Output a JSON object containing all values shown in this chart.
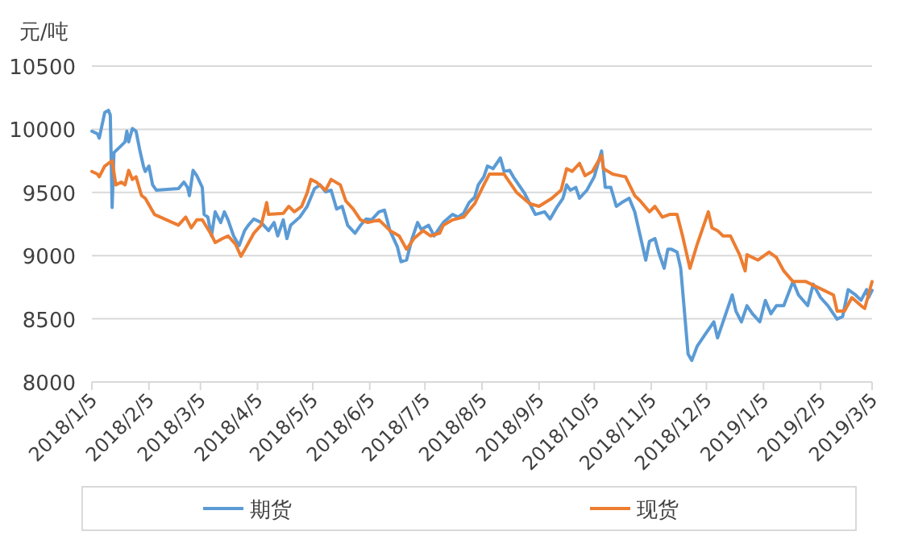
{
  "chart_data": {
    "type": "line",
    "ylabel": "元/吨",
    "ylim": [
      8000,
      10500
    ],
    "yticks": [
      8000,
      8500,
      9000,
      9500,
      10000,
      10500
    ],
    "xlim": [
      "2018-01-05",
      "2019-03-05"
    ],
    "xticks": [
      {
        "value": "2018-01-05",
        "label": "2018/1/5"
      },
      {
        "value": "2018-02-05",
        "label": "2018/2/5"
      },
      {
        "value": "2018-03-05",
        "label": "2018/3/5"
      },
      {
        "value": "2018-04-05",
        "label": "2018/4/5"
      },
      {
        "value": "2018-05-05",
        "label": "2018/5/5"
      },
      {
        "value": "2018-06-05",
        "label": "2018/6/5"
      },
      {
        "value": "2018-07-05",
        "label": "2018/7/5"
      },
      {
        "value": "2018-08-05",
        "label": "2018/8/5"
      },
      {
        "value": "2018-09-05",
        "label": "2018/9/5"
      },
      {
        "value": "2018-10-05",
        "label": "2018/10/5"
      },
      {
        "value": "2018-11-05",
        "label": "2018/11/5"
      },
      {
        "value": "2018-12-05",
        "label": "2018/12/5"
      },
      {
        "value": "2019-01-05",
        "label": "2019/1/5"
      },
      {
        "value": "2019-02-05",
        "label": "2019/2/5"
      },
      {
        "value": "2019-03-05",
        "label": "2019/3/5"
      }
    ],
    "grid": "y",
    "legend": "bottom",
    "marker": "none",
    "line_style": "solid",
    "series": [
      {
        "name": "期货",
        "color": "#5b9bd5",
        "x": [
          "2018-01-05",
          "2018-01-08",
          "2018-01-09",
          "2018-01-12",
          "2018-01-14",
          "2018-01-15",
          "2018-01-16",
          "2018-01-17",
          "2018-01-20",
          "2018-01-23",
          "2018-01-24",
          "2018-01-25",
          "2018-01-27",
          "2018-01-29",
          "2018-01-31",
          "2018-02-02",
          "2018-02-03",
          "2018-02-05",
          "2018-02-07",
          "2018-02-09",
          "2018-02-21",
          "2018-02-24",
          "2018-02-26",
          "2018-02-27",
          "2018-03-01",
          "2018-03-03",
          "2018-03-06",
          "2018-03-07",
          "2018-03-09",
          "2018-03-11",
          "2018-03-13",
          "2018-03-16",
          "2018-03-18",
          "2018-03-20",
          "2018-03-23",
          "2018-03-26",
          "2018-03-29",
          "2018-03-31",
          "2018-04-03",
          "2018-04-07",
          "2018-04-11",
          "2018-04-14",
          "2018-04-16",
          "2018-04-19",
          "2018-04-21",
          "2018-04-23",
          "2018-04-28",
          "2018-05-02",
          "2018-05-06",
          "2018-05-09",
          "2018-05-12",
          "2018-05-15",
          "2018-05-18",
          "2018-05-21",
          "2018-05-24",
          "2018-05-28",
          "2018-05-31",
          "2018-06-03",
          "2018-06-06",
          "2018-06-10",
          "2018-06-13",
          "2018-06-16",
          "2018-06-20",
          "2018-06-22",
          "2018-06-25",
          "2018-06-28",
          "2018-07-01",
          "2018-07-03",
          "2018-07-07",
          "2018-07-10",
          "2018-07-13",
          "2018-07-15",
          "2018-07-20",
          "2018-07-23",
          "2018-07-26",
          "2018-07-29",
          "2018-08-01",
          "2018-08-03",
          "2018-08-06",
          "2018-08-08",
          "2018-08-11",
          "2018-08-15",
          "2018-08-17",
          "2018-08-20",
          "2018-08-22",
          "2018-08-25",
          "2018-08-28",
          "2018-08-31",
          "2018-09-03",
          "2018-09-08",
          "2018-09-11",
          "2018-09-15",
          "2018-09-18",
          "2018-09-20",
          "2018-09-22",
          "2018-09-25",
          "2018-09-27",
          "2018-10-01",
          "2018-10-05",
          "2018-10-09",
          "2018-10-11",
          "2018-10-14",
          "2018-10-17",
          "2018-10-20",
          "2018-10-24",
          "2018-10-27",
          "2018-10-30",
          "2018-11-02",
          "2018-11-04",
          "2018-11-07",
          "2018-11-09",
          "2018-11-12",
          "2018-11-14",
          "2018-11-16",
          "2018-11-19",
          "2018-11-21",
          "2018-11-23",
          "2018-11-25",
          "2018-11-27",
          "2018-11-30",
          "2018-12-04",
          "2018-12-09",
          "2018-12-11",
          "2018-12-14",
          "2018-12-19",
          "2018-12-21",
          "2018-12-24",
          "2018-12-27",
          "2018-12-30",
          "2019-01-03",
          "2019-01-06",
          "2019-01-09",
          "2019-01-12",
          "2019-01-16",
          "2019-01-21",
          "2019-01-24",
          "2019-01-29",
          "2019-02-01",
          "2019-02-05",
          "2019-02-09",
          "2019-02-14",
          "2019-02-17",
          "2019-02-20",
          "2019-02-24",
          "2019-02-27",
          "2019-03-02",
          "2019-03-03",
          "2019-03-05"
        ],
        "values": [
          9985,
          9964,
          9930,
          10134,
          10150,
          10112,
          9381,
          9815,
          9857,
          9900,
          9985,
          9900,
          10006,
          9985,
          9837,
          9709,
          9666,
          9709,
          9560,
          9518,
          9530,
          9582,
          9540,
          9475,
          9675,
          9633,
          9540,
          9326,
          9305,
          9156,
          9347,
          9262,
          9347,
          9283,
          9156,
          9079,
          9198,
          9240,
          9290,
          9262,
          9198,
          9262,
          9156,
          9283,
          9135,
          9240,
          9305,
          9390,
          9530,
          9560,
          9505,
          9518,
          9369,
          9390,
          9240,
          9177,
          9240,
          9290,
          9283,
          9347,
          9360,
          9198,
          9071,
          8952,
          8965,
          9135,
          9262,
          9207,
          9240,
          9156,
          9220,
          9262,
          9326,
          9305,
          9335,
          9420,
          9462,
          9560,
          9624,
          9709,
          9688,
          9773,
          9667,
          9675,
          9624,
          9560,
          9497,
          9411,
          9326,
          9347,
          9290,
          9390,
          9454,
          9560,
          9518,
          9540,
          9454,
          9518,
          9624,
          9828,
          9540,
          9540,
          9390,
          9420,
          9454,
          9347,
          9156,
          8964,
          9113,
          9135,
          9028,
          8900,
          9050,
          9050,
          9028,
          8900,
          8561,
          8221,
          8170,
          8285,
          8370,
          8476,
          8349,
          8476,
          8689,
          8561,
          8476,
          8604,
          8540,
          8476,
          8646,
          8540,
          8604,
          8604,
          8795,
          8689,
          8604,
          8774,
          8668,
          8604,
          8497,
          8519,
          8731,
          8689,
          8646,
          8731,
          8668,
          8725
        ]
      },
      {
        "name": "现货",
        "color": "#ed7d31",
        "x": [
          "2018-01-05",
          "2018-01-08",
          "2018-01-09",
          "2018-01-12",
          "2018-01-16",
          "2018-01-18",
          "2018-01-21",
          "2018-01-23",
          "2018-01-25",
          "2018-01-27",
          "2018-01-29",
          "2018-02-01",
          "2018-02-03",
          "2018-02-08",
          "2018-02-21",
          "2018-02-25",
          "2018-02-28",
          "2018-03-03",
          "2018-03-06",
          "2018-03-11",
          "2018-03-13",
          "2018-03-17",
          "2018-03-20",
          "2018-03-24",
          "2018-03-27",
          "2018-03-30",
          "2018-04-03",
          "2018-04-07",
          "2018-04-10",
          "2018-04-11",
          "2018-04-19",
          "2018-04-22",
          "2018-04-25",
          "2018-04-29",
          "2018-05-02",
          "2018-05-04",
          "2018-05-07",
          "2018-05-12",
          "2018-05-15",
          "2018-05-20",
          "2018-05-23",
          "2018-05-27",
          "2018-05-31",
          "2018-06-04",
          "2018-06-10",
          "2018-06-13",
          "2018-06-16",
          "2018-06-21",
          "2018-06-25",
          "2018-06-29",
          "2018-07-04",
          "2018-07-08",
          "2018-07-13",
          "2018-07-15",
          "2018-07-20",
          "2018-07-26",
          "2018-08-01",
          "2018-08-06",
          "2018-08-09",
          "2018-08-17",
          "2018-08-24",
          "2018-08-31",
          "2018-09-05",
          "2018-09-12",
          "2018-09-17",
          "2018-09-20",
          "2018-09-23",
          "2018-09-27",
          "2018-09-30",
          "2018-10-04",
          "2018-10-09",
          "2018-10-10",
          "2018-10-15",
          "2018-10-22",
          "2018-10-27",
          "2018-10-30",
          "2018-11-04",
          "2018-11-07",
          "2018-11-11",
          "2018-11-15",
          "2018-11-19",
          "2018-11-22",
          "2018-11-26",
          "2018-11-30",
          "2018-12-06",
          "2018-12-08",
          "2018-12-11",
          "2018-12-14",
          "2018-12-18",
          "2018-12-23",
          "2018-12-26",
          "2018-12-27",
          "2019-01-02",
          "2019-01-08",
          "2019-01-12",
          "2019-01-16",
          "2019-01-21",
          "2019-01-28",
          "2019-02-06",
          "2019-02-12",
          "2019-02-14",
          "2019-02-18",
          "2019-02-22",
          "2019-02-27",
          "2019-03-01",
          "2019-03-05"
        ],
        "values": [
          9666,
          9645,
          9624,
          9709,
          9751,
          9560,
          9582,
          9560,
          9675,
          9603,
          9624,
          9475,
          9454,
          9326,
          9241,
          9305,
          9220,
          9283,
          9283,
          9164,
          9104,
          9135,
          9156,
          9092,
          8995,
          9071,
          9177,
          9241,
          9420,
          9326,
          9335,
          9390,
          9347,
          9390,
          9497,
          9603,
          9582,
          9518,
          9603,
          9560,
          9433,
          9369,
          9283,
          9262,
          9283,
          9241,
          9198,
          9156,
          9050,
          9135,
          9198,
          9156,
          9177,
          9241,
          9283,
          9305,
          9411,
          9560,
          9645,
          9645,
          9497,
          9411,
          9390,
          9454,
          9518,
          9688,
          9667,
          9730,
          9633,
          9667,
          9794,
          9688,
          9645,
          9624,
          9475,
          9433,
          9347,
          9390,
          9305,
          9326,
          9326,
          9156,
          8900,
          9092,
          9347,
          9220,
          9198,
          9156,
          9156,
          9007,
          8879,
          9007,
          8965,
          9028,
          8986,
          8879,
          8795,
          8795,
          8731,
          8689,
          8561,
          8561,
          8668,
          8604,
          8582,
          8795
        ]
      }
    ]
  }
}
